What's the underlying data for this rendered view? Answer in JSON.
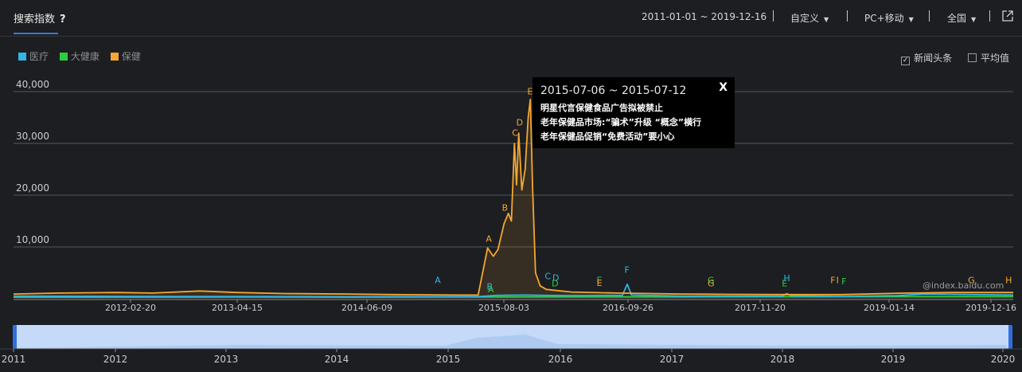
{
  "header": {
    "title": "搜索指数",
    "help": "?",
    "date_range": "2011-01-01 ~ 2019-12-16",
    "custom": "自定义",
    "device": "PC+移动",
    "region": "全国"
  },
  "options": {
    "news_label": "新闻头条",
    "news_checked": "✓",
    "avg_label": "平均值"
  },
  "tooltip": {
    "date": "2015-07-06 ~ 2015-07-12",
    "close": "X",
    "news": [
      "明星代言保健食品广告拟被禁止",
      "老年保健品市场:“骗术”升级 “概念”横行",
      "老年保健品促销“免费活动”要小心"
    ]
  },
  "watermark": "@index.baidu.com",
  "chart_data": {
    "type": "line",
    "title": "",
    "xlabel": "",
    "ylabel": "",
    "ylim": [
      0,
      43000
    ],
    "yticks": [
      "40,000",
      "30,000",
      "20,000",
      "10,000"
    ],
    "ytick_values": [
      40000,
      30000,
      20000,
      10000
    ],
    "grid": true,
    "legend_position": "top-left",
    "xtick_labels": [
      "2012-02-20",
      "2013-04-15",
      "2014-06-09",
      "2015-08-03",
      "2016-09-26",
      "2017-11-20",
      "2019-01-14",
      "2019-12-16"
    ],
    "navigator_years": [
      "2011",
      "2012",
      "2013",
      "2014",
      "2015",
      "2016",
      "2017",
      "2018",
      "2019",
      "2020"
    ],
    "series": [
      {
        "name": "医疗",
        "color": "#33b5e5",
        "points": [
          [
            "2011-01-01",
            500
          ],
          [
            "2012-01-01",
            450
          ],
          [
            "2013-01-01",
            420
          ],
          [
            "2014-01-01",
            380
          ],
          [
            "2015-03-01",
            400
          ],
          [
            "2015-05-01",
            650
          ],
          [
            "2015-08-01",
            700
          ],
          [
            "2015-10-01",
            650
          ],
          [
            "2016-01-01",
            600
          ],
          [
            "2016-06-15",
            650
          ],
          [
            "2016-07-01",
            2800
          ],
          [
            "2016-07-15",
            700
          ],
          [
            "2017-01-01",
            500
          ],
          [
            "2017-11-20",
            500
          ],
          [
            "2017-12-05",
            1000
          ],
          [
            "2017-12-20",
            550
          ],
          [
            "2018-06-01",
            450
          ],
          [
            "2018-12-01",
            600
          ],
          [
            "2019-03-01",
            900
          ],
          [
            "2019-06-01",
            850
          ],
          [
            "2019-12-16",
            700
          ]
        ]
      },
      {
        "name": "大健康",
        "color": "#2ecc40",
        "points": [
          [
            "2011-01-01",
            300
          ],
          [
            "2012-01-01",
            300
          ],
          [
            "2013-01-01",
            320
          ],
          [
            "2014-01-01",
            300
          ],
          [
            "2015-01-01",
            320
          ],
          [
            "2016-01-01",
            350
          ],
          [
            "2017-01-01",
            350
          ],
          [
            "2018-01-01",
            380
          ],
          [
            "2019-01-01",
            400
          ],
          [
            "2019-12-16",
            420
          ]
        ]
      },
      {
        "name": "保健",
        "color": "#f4a732",
        "points": [
          [
            "2011-01-01",
            900
          ],
          [
            "2011-06-01",
            1100
          ],
          [
            "2011-12-01",
            1200
          ],
          [
            "2012-04-01",
            1100
          ],
          [
            "2012-09-01",
            1500
          ],
          [
            "2013-01-01",
            1200
          ],
          [
            "2013-06-01",
            1000
          ],
          [
            "2014-01-01",
            900
          ],
          [
            "2014-06-01",
            800
          ],
          [
            "2015-01-01",
            700
          ],
          [
            "2015-03-01",
            700
          ],
          [
            "2015-04-01",
            9800
          ],
          [
            "2015-04-20",
            8200
          ],
          [
            "2015-05-05",
            9500
          ],
          [
            "2015-05-25",
            14500
          ],
          [
            "2015-06-08",
            16500
          ],
          [
            "2015-06-18",
            15000
          ],
          [
            "2015-06-28",
            30000
          ],
          [
            "2015-07-05",
            22000
          ],
          [
            "2015-07-12",
            32000
          ],
          [
            "2015-07-22",
            21000
          ],
          [
            "2015-08-02",
            25000
          ],
          [
            "2015-08-12",
            35000
          ],
          [
            "2015-08-19",
            38500
          ],
          [
            "2015-08-26",
            22000
          ],
          [
            "2015-09-05",
            5000
          ],
          [
            "2015-09-20",
            2500
          ],
          [
            "2015-10-10",
            1800
          ],
          [
            "2016-01-01",
            1300
          ],
          [
            "2016-06-01",
            1100
          ],
          [
            "2017-01-01",
            900
          ],
          [
            "2017-06-01",
            850
          ],
          [
            "2018-01-01",
            800
          ],
          [
            "2018-06-01",
            800
          ],
          [
            "2019-01-01",
            1100
          ],
          [
            "2019-06-01",
            1200
          ],
          [
            "2019-12-16",
            1200
          ]
        ]
      }
    ],
    "event_markers": [
      {
        "label": "A",
        "date": "2014-10-20",
        "value": 3000,
        "color": "#33b5e5"
      },
      {
        "label": "A",
        "date": "2015-04-05",
        "value": 11000,
        "color": "#f4a732"
      },
      {
        "label": "B",
        "date": "2015-05-28",
        "value": 17000,
        "color": "#f4a732"
      },
      {
        "label": "C",
        "date": "2015-06-30",
        "value": 31500,
        "color": "#f4a732"
      },
      {
        "label": "D",
        "date": "2015-07-15",
        "value": 33500,
        "color": "#f4a732"
      },
      {
        "label": "E",
        "date": "2015-08-18",
        "value": 39500,
        "color": "#f4a732"
      },
      {
        "label": "B",
        "date": "2015-04-08",
        "value": 1800,
        "color": "#33b5e5"
      },
      {
        "label": "A",
        "date": "2015-04-12",
        "value": 1200,
        "color": "#2ecc40"
      },
      {
        "label": "C",
        "date": "2015-10-15",
        "value": 3800,
        "color": "#33b5e5"
      },
      {
        "label": "D",
        "date": "2015-11-10",
        "value": 3500,
        "color": "#33b5e5"
      },
      {
        "label": "D",
        "date": "2015-11-08",
        "value": 2400,
        "color": "#2ecc40"
      },
      {
        "label": "E",
        "date": "2016-04-01",
        "value": 3000,
        "color": "#2ecc40"
      },
      {
        "label": "E",
        "date": "2016-04-01",
        "value": 2500,
        "color": "#f4a732"
      },
      {
        "label": "F",
        "date": "2016-06-30",
        "value": 5000,
        "color": "#33b5e5"
      },
      {
        "label": "G",
        "date": "2017-04-01",
        "value": 3000,
        "color": "#2ecc40"
      },
      {
        "label": "G",
        "date": "2017-04-01",
        "value": 2400,
        "color": "#f4a732"
      },
      {
        "label": "H",
        "date": "2017-12-05",
        "value": 3400,
        "color": "#33b5e5"
      },
      {
        "label": "E",
        "date": "2017-11-28",
        "value": 2400,
        "color": "#2ecc40"
      },
      {
        "label": "F",
        "date": "2018-05-05",
        "value": 3000,
        "color": "#f4a732"
      },
      {
        "label": "I",
        "date": "2018-05-20",
        "value": 3000,
        "color": "#f4a732"
      },
      {
        "label": "F",
        "date": "2018-06-10",
        "value": 2800,
        "color": "#2ecc40"
      },
      {
        "label": "G",
        "date": "2019-08-01",
        "value": 3000,
        "color": "#f4a732"
      },
      {
        "label": "H",
        "date": "2019-12-01",
        "value": 3000,
        "color": "#f4a732"
      }
    ]
  }
}
